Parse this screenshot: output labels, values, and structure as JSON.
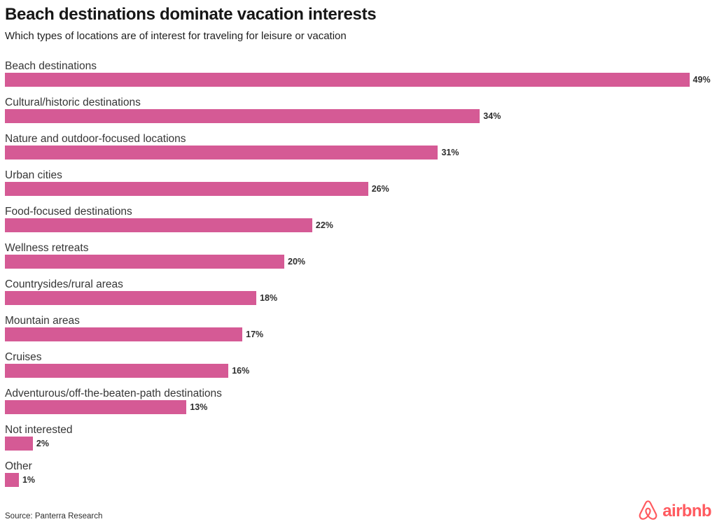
{
  "header": {
    "title": "Beach destinations dominate vacation interests",
    "subtitle": "Which types of locations are of interest for traveling for leisure or vacation"
  },
  "chart_data": {
    "type": "bar",
    "orientation": "horizontal",
    "title": "Beach destinations dominate vacation interests",
    "subtitle": "Which types of locations are of interest for traveling for leisure or vacation",
    "categories": [
      "Beach destinations",
      "Cultural/historic destinations",
      "Nature and outdoor-focused locations",
      "Urban cities",
      "Food-focused destinations",
      "Wellness retreats",
      "Countrysides/rural areas",
      "Mountain areas",
      "Cruises",
      "Adventurous/off-the-beaten-path destinations",
      "Not interested",
      "Other"
    ],
    "values": [
      49,
      34,
      31,
      26,
      22,
      20,
      18,
      17,
      16,
      13,
      2,
      1
    ],
    "value_labels": [
      "49%",
      "34%",
      "31%",
      "26%",
      "22%",
      "20%",
      "18%",
      "17%",
      "16%",
      "13%",
      "2%",
      "1%"
    ],
    "unit": "%",
    "xlim": [
      0,
      50
    ],
    "grid": false,
    "legend": false,
    "bar_color": "#d55a95",
    "label_color": "#363636",
    "value_label_color": "#2e2e2e"
  },
  "footer": {
    "source": "Source: Panterra Research",
    "brand_name": "airbnb",
    "brand_color": "#FF5A5F",
    "brand_icon": "airbnb-belo-icon"
  }
}
